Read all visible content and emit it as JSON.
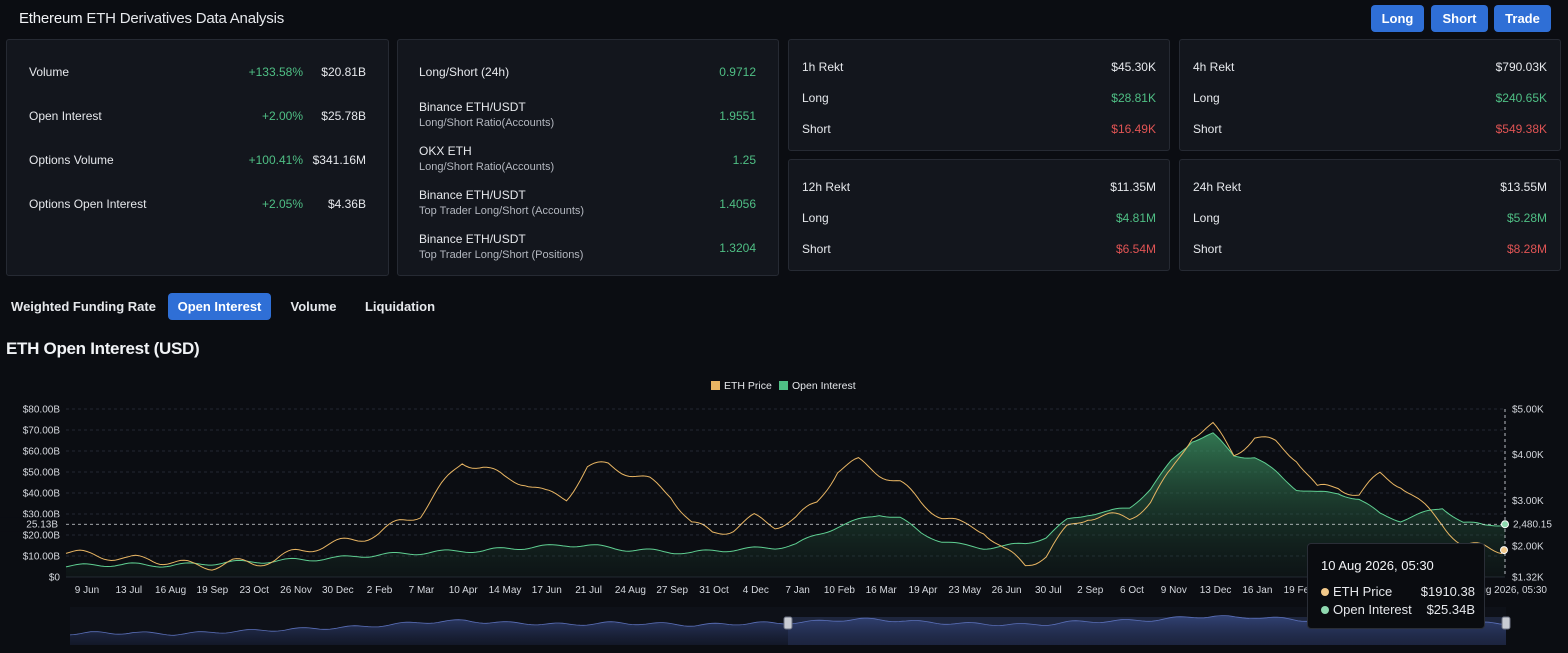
{
  "header": {
    "title_main": "Ethereum",
    "title_rest": "ETH Derivatives Data Analysis",
    "buttons": {
      "long": "Long",
      "short": "Short",
      "trade": "Trade"
    },
    "button_color": "#2f6fd6"
  },
  "summary": {
    "rows": [
      {
        "label": "Volume",
        "change": "+133.58%",
        "value": "$20.81B"
      },
      {
        "label": "Open Interest",
        "change": "+2.00%",
        "value": "$25.78B"
      },
      {
        "label": "Options Volume",
        "change": "+100.41%",
        "value": "$341.16M"
      },
      {
        "label": "Options Open Interest",
        "change": "+2.05%",
        "value": "$4.36B"
      }
    ]
  },
  "long_short": {
    "title": "Long/Short (24h)",
    "title_value": "0.9712",
    "rows": [
      {
        "label": "Binance ETH/USDT",
        "sub": "Long/Short Ratio(Accounts)",
        "value": "1.9551"
      },
      {
        "label": "OKX ETH",
        "sub": "Long/Short Ratio(Accounts)",
        "value": "1.25"
      },
      {
        "label": "Binance ETH/USDT",
        "sub": "Top Trader Long/Short (Accounts)",
        "value": "1.4056"
      },
      {
        "label": "Binance ETH/USDT",
        "sub": "Top Trader Long/Short (Positions)",
        "value": "1.3204"
      }
    ]
  },
  "rekt": [
    {
      "title": "1h Rekt",
      "total": "$45.30K",
      "long_label": "Long",
      "long": "$28.81K",
      "short_label": "Short",
      "short": "$16.49K"
    },
    {
      "title": "4h Rekt",
      "total": "$790.03K",
      "long_label": "Long",
      "long": "$240.65K",
      "short_label": "Short",
      "short": "$549.38K"
    },
    {
      "title": "12h Rekt",
      "total": "$11.35M",
      "long_label": "Long",
      "long": "$4.81M",
      "short_label": "Short",
      "short": "$6.54M"
    },
    {
      "title": "24h Rekt",
      "total": "$13.55M",
      "long_label": "Long",
      "long": "$5.28M",
      "short_label": "Short",
      "short": "$8.28M"
    }
  ],
  "tabs": [
    {
      "label": "Weighted Funding Rate",
      "active": false
    },
    {
      "label": "Open Interest",
      "active": true
    },
    {
      "label": "Volume",
      "active": false
    },
    {
      "label": "Liquidation",
      "active": false
    }
  ],
  "chart_title": "ETH Open Interest (USD)",
  "tooltip": {
    "time": "10 Aug 2026, 05:30",
    "rows": [
      {
        "name": "ETH Price",
        "value": "$1910.38",
        "color": "#f2c98a"
      },
      {
        "name": "Open Interest",
        "value": "$25.34B",
        "color": "#8fd9b0"
      }
    ]
  },
  "chart_data": {
    "type": "area",
    "legend": [
      "ETH Price",
      "Open Interest"
    ],
    "legend_placement": "top-center",
    "colors": {
      "eth_price": "#e8b563",
      "open_interest": "#3f9a67"
    },
    "x_ticks": [
      "9 Jun",
      "13 Jul",
      "16 Aug",
      "19 Sep",
      "23 Oct",
      "26 Nov",
      "30 Dec",
      "2 Feb",
      "7 Mar",
      "10 Apr",
      "14 May",
      "17 Jun",
      "21 Jul",
      "24 Aug",
      "27 Sep",
      "31 Oct",
      "4 Dec",
      "7 Jan",
      "10 Feb",
      "16 Mar",
      "19 Apr",
      "23 May",
      "26 Jun",
      "30 Jul",
      "2 Sep",
      "6 Oct",
      "9 Nov",
      "13 Dec",
      "16 Jan",
      "19 Feb"
    ],
    "x_last_label": "10 Aug 2026, 05:30",
    "y_left": {
      "ticks": [
        "$0",
        "$10.00B",
        "$20.00B",
        "$30.00B",
        "$40.00B",
        "$50.00B",
        "$60.00B",
        "$70.00B",
        "$80.00B"
      ],
      "range": [
        0,
        80
      ],
      "unit": "B USD"
    },
    "y_right": {
      "ticks": [
        "$1.32K",
        "$2.00K",
        "$3.00K",
        "$4.00K",
        "$5.00K"
      ],
      "range": [
        1320,
        5000
      ]
    },
    "crosshair_left_label": "25.13B",
    "crosshair_left_value": 25.13,
    "crosshair_right_label": "2,480.15",
    "crosshair_right_value": 2480.15,
    "grid": true,
    "series": [
      {
        "name": "ETH Price",
        "axis": "right",
        "values": [
          1880,
          1800,
          1780,
          1700,
          1720,
          1650,
          1580,
          1560,
          1640,
          1620,
          1700,
          1860,
          1980,
          2060,
          2150,
          2280,
          2520,
          2700,
          3300,
          3850,
          3720,
          3500,
          3400,
          3150,
          3050,
          3720,
          3780,
          3600,
          3420,
          3120,
          2500,
          2280,
          2380,
          2620,
          2450,
          2600,
          2950,
          3660,
          3850,
          3600,
          3380,
          2950,
          2650,
          2450,
          2350,
          1900,
          1580,
          1800,
          2380,
          2650,
          2650,
          2600,
          2980,
          3630,
          4430,
          4630,
          4010,
          4380,
          4250,
          3930,
          3250,
          3300,
          3120,
          3560,
          3350,
          2900,
          2500,
          1990,
          1980,
          1910
        ]
      },
      {
        "name": "Open Interest",
        "axis": "left",
        "values": [
          5.2,
          5.5,
          5.8,
          6.0,
          5.6,
          5.5,
          6.0,
          6.5,
          7.0,
          7.3,
          7.5,
          8.2,
          8.5,
          9.0,
          10.0,
          10.5,
          11.0,
          11.5,
          12.0,
          12.5,
          12.4,
          13.5,
          14.0,
          14.5,
          15.2,
          15.0,
          14.0,
          13.0,
          12.5,
          12.0,
          11.5,
          12.5,
          13.0,
          13.5,
          14.0,
          15.5,
          20.0,
          24.0,
          27.0,
          30.0,
          28.0,
          21.0,
          17.0,
          15.0,
          14.0,
          14.5,
          16.0,
          19.0,
          27.0,
          30.0,
          31.0,
          33.0,
          42.0,
          55.0,
          65.0,
          68.0,
          58.0,
          57.0,
          50.0,
          42.0,
          40.0,
          40.0,
          37.0,
          30.0,
          27.0,
          30.0,
          33.0,
          26.0,
          24.5,
          25.3
        ]
      }
    ],
    "navigator": {
      "values": [
        30,
        32,
        31,
        33,
        30,
        29,
        31,
        34,
        36,
        38,
        40,
        42,
        44,
        46,
        48,
        52,
        56,
        60,
        62,
        64,
        60,
        58,
        57,
        55,
        54,
        56,
        58,
        57,
        56,
        55,
        52,
        54,
        56,
        58,
        57,
        60,
        62,
        66,
        68,
        66,
        64,
        60,
        58,
        56,
        55,
        54,
        53,
        55,
        60,
        62,
        63,
        64,
        66,
        70,
        74,
        76,
        72,
        73,
        70,
        66,
        65,
        65,
        63,
        64,
        62,
        63,
        64,
        58,
        57,
        56
      ],
      "selected_from": 0.5
    }
  }
}
